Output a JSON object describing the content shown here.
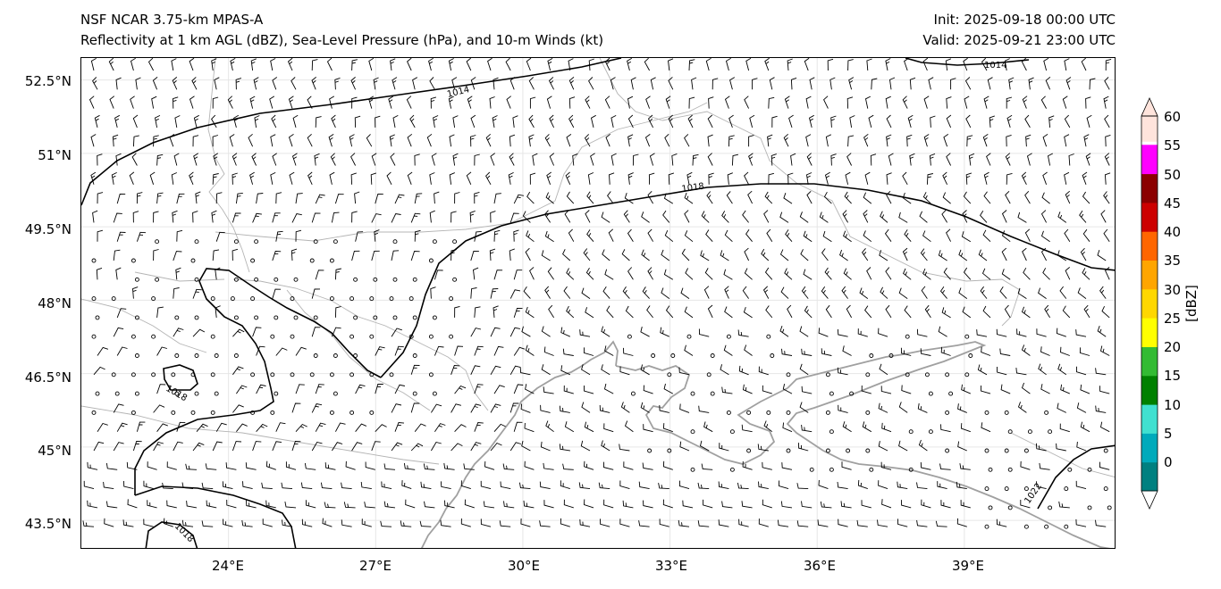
{
  "titles": {
    "left_line1": "NSF NCAR 3.75-km MPAS-A",
    "left_line2": "Reflectivity at 1 km AGL (dBZ), Sea-Level Pressure (hPa), and 10-m Winds (kt)",
    "right_line1": "Init: 2025-09-18 00:00 UTC",
    "right_line2": "Valid: 2025-09-21 23:00 UTC"
  },
  "axes": {
    "lat_labels": [
      "52.5°N",
      "51°N",
      "49.5°N",
      "48°N",
      "46.5°N",
      "45°N",
      "43.5°N"
    ],
    "lon_labels": [
      "24°E",
      "27°E",
      "30°E",
      "33°E",
      "36°E",
      "39°E"
    ],
    "lat_values": [
      52.5,
      51,
      49.5,
      48,
      46.5,
      45,
      43.5
    ],
    "lon_values": [
      24,
      27,
      30,
      33,
      36,
      39
    ],
    "lon_range": [
      21.0,
      42.1
    ],
    "lat_range": [
      42.9,
      52.95
    ]
  },
  "isobars": {
    "labels": [
      "1014",
      "1014",
      "1018",
      "1018",
      "1018",
      "1022"
    ],
    "interval_hpa": 4
  },
  "colorbar": {
    "label": "[dBZ]",
    "ticks": [
      "0",
      "5",
      "10",
      "15",
      "20",
      "25",
      "30",
      "35",
      "40",
      "45",
      "50",
      "55",
      "60"
    ],
    "colors": [
      "#008080",
      "#00aabb",
      "#40e0d0",
      "#008000",
      "#33bb33",
      "#ffff00",
      "#ffd700",
      "#ffa500",
      "#ff6600",
      "#cc0000",
      "#8b0000",
      "#ff00ff",
      "#ffe4dc"
    ]
  },
  "colors": {
    "coastline": "#a0a0a0",
    "border": "#b4b4b4",
    "isobar": "#000000",
    "barb": "#000000"
  }
}
